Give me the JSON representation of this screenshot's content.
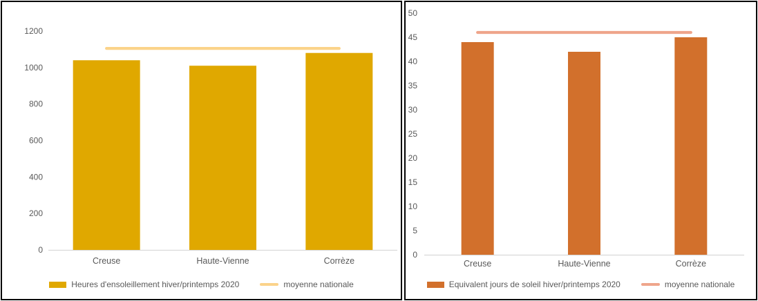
{
  "chart_data": [
    {
      "type": "bar",
      "title": "",
      "categories": [
        "Creuse",
        "Haute-Vienne",
        "Corrèze"
      ],
      "series": [
        {
          "name": "Heures d'ensoleillement hiver/printemps 2020",
          "render": "bar",
          "color": "#E0A800",
          "values": [
            1040,
            1010,
            1080
          ]
        },
        {
          "name": "moyenne nationale",
          "render": "line",
          "color": "#FBD38A",
          "values": [
            1105,
            1105,
            1105
          ]
        }
      ],
      "xlabel": "",
      "ylabel": "",
      "ylim": [
        0,
        1200
      ],
      "ytick_step": 200,
      "grid": false,
      "legend_position": "bottom"
    },
    {
      "type": "bar",
      "title": "",
      "categories": [
        "Creuse",
        "Haute-Vienne",
        "Corrèze"
      ],
      "series": [
        {
          "name": "Equivalent jours de soleil hiver/printemps 2020",
          "render": "bar",
          "color": "#D2702C",
          "values": [
            44,
            42,
            45
          ]
        },
        {
          "name": "moyenne nationale",
          "render": "line",
          "color": "#EFA58B",
          "values": [
            46,
            46,
            46
          ]
        }
      ],
      "xlabel": "",
      "ylabel": "",
      "ylim": [
        0,
        50
      ],
      "ytick_step": 5,
      "grid": false,
      "legend_position": "bottom"
    }
  ],
  "colors": {
    "axis_line": "#D9D9D9",
    "label_text": "#595959",
    "panel_border": "#000000",
    "background": "#FFFFFF"
  }
}
